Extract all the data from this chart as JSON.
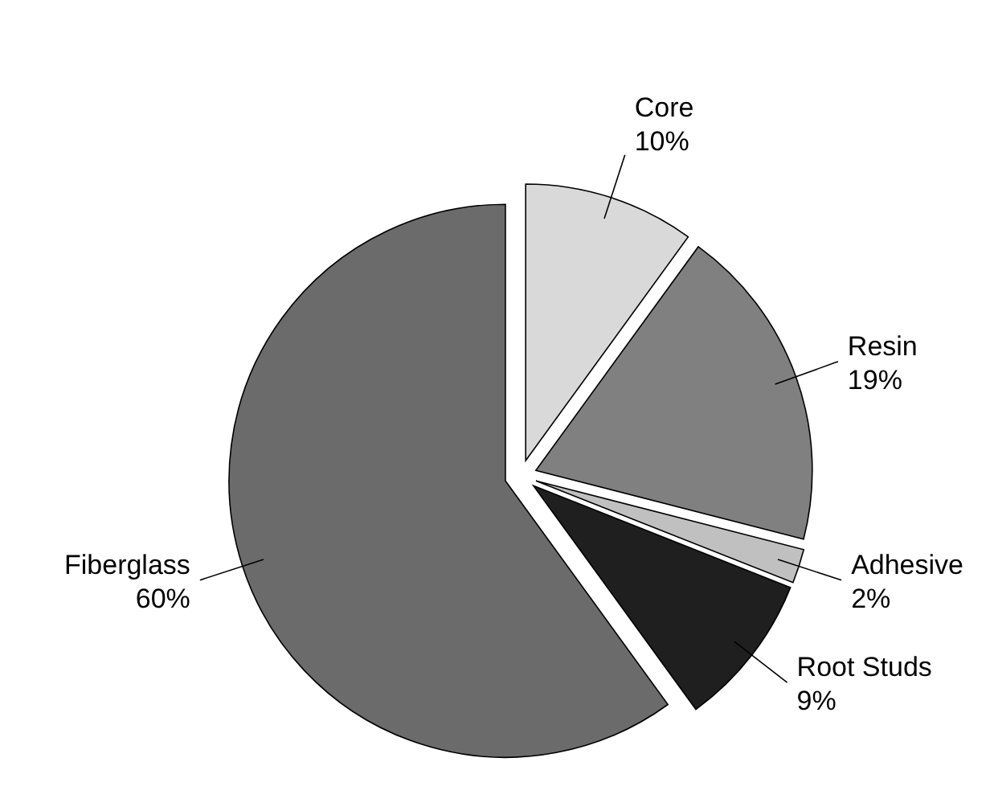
{
  "chart_data": {
    "type": "pie",
    "categories": [
      "Core",
      "Resin",
      "Adhesive",
      "Root Studs",
      "Fiberglass"
    ],
    "values": [
      10,
      19,
      2,
      9,
      60
    ],
    "value_labels": [
      "10%",
      "19%",
      "2%",
      "9%",
      "60%"
    ],
    "colors": [
      "#d9d9d9",
      "#808080",
      "#c0c0c0",
      "#1f1f1f",
      "#6b6b6b"
    ]
  }
}
